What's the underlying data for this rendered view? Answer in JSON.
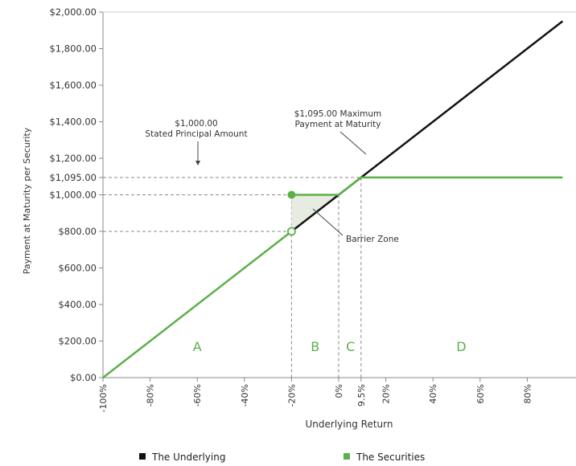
{
  "chart_data": {
    "type": "line",
    "title": "",
    "xlabel": "Underlying Return",
    "ylabel": "Payment at Maturity per Security",
    "xlim": [
      -100,
      95
    ],
    "ylim": [
      0,
      2000
    ],
    "y_ticks": [
      {
        "value": 0,
        "label": "$0.00"
      },
      {
        "value": 200,
        "label": "$200.00"
      },
      {
        "value": 400,
        "label": "$400.00"
      },
      {
        "value": 600,
        "label": "$600.00"
      },
      {
        "value": 800,
        "label": "$800.00"
      },
      {
        "value": 1000,
        "label": "$1,000.00"
      },
      {
        "value": 1095,
        "label": "$1,095.00"
      },
      {
        "value": 1200,
        "label": "$1,200.00"
      },
      {
        "value": 1400,
        "label": "$1,400.00"
      },
      {
        "value": 1600,
        "label": "$1,600.00"
      },
      {
        "value": 1800,
        "label": "$1,800.00"
      },
      {
        "value": 2000,
        "label": "$2,000.00"
      }
    ],
    "x_ticks": [
      {
        "value": -100,
        "label": "-100%"
      },
      {
        "value": -80,
        "label": "-80%"
      },
      {
        "value": -60,
        "label": "-60%"
      },
      {
        "value": -40,
        "label": "-40%"
      },
      {
        "value": -20,
        "label": "-20%"
      },
      {
        "value": 0,
        "label": "0%"
      },
      {
        "value": 9.5,
        "label": "9.5%"
      },
      {
        "value": 20,
        "label": "20%"
      },
      {
        "value": 40,
        "label": "40%"
      },
      {
        "value": 60,
        "label": "60%"
      },
      {
        "value": 80,
        "label": "80%"
      }
    ],
    "series": [
      {
        "name": "The Underlying",
        "color": "#111111",
        "points": [
          [
            -20,
            800
          ],
          [
            95,
            1950
          ]
        ]
      },
      {
        "name": "The Securities",
        "color": "#5cb04a",
        "segments": [
          [
            [
              -100,
              0
            ],
            [
              -20,
              800
            ]
          ],
          [
            [
              -20,
              1000
            ],
            [
              0,
              1000
            ],
            [
              9.5,
              1095
            ],
            [
              95,
              1095
            ]
          ]
        ],
        "open_marker": [
          -20,
          800
        ],
        "closed_marker": [
          -20,
          1000
        ]
      }
    ],
    "reference_lines": {
      "horizontal": [
        1095,
        1000,
        800
      ],
      "vertical": [
        -20,
        0,
        9.5
      ]
    },
    "regions": [
      {
        "label": "A",
        "x": -60
      },
      {
        "label": "B",
        "x": -10
      },
      {
        "label": "C",
        "x": 5
      },
      {
        "label": "D",
        "x": 52
      }
    ],
    "annotations": {
      "principal": [
        "$1,000.00",
        "Stated Principal Amount"
      ],
      "maximum": [
        "$1,095.00 Maximum",
        "Payment at Maturity"
      ],
      "barrier": "Barrier Zone"
    },
    "legend": {
      "position": "bottom"
    },
    "grid": false
  }
}
